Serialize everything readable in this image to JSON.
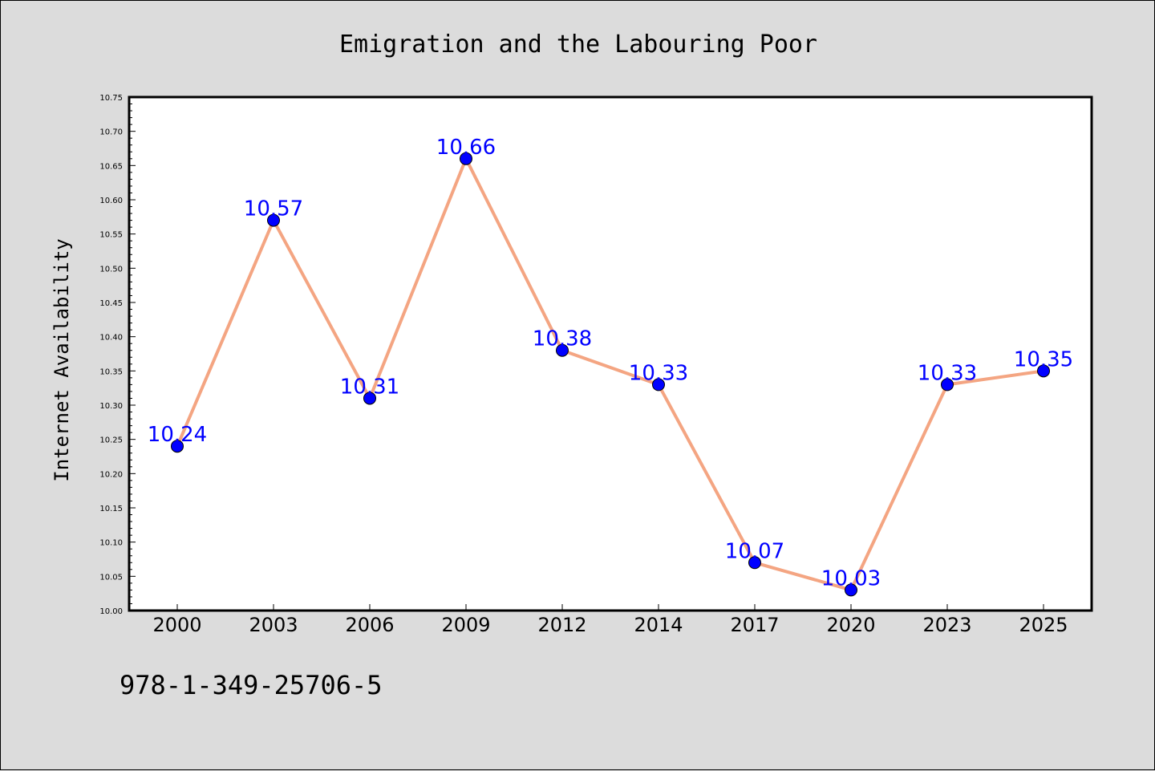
{
  "chart_data": {
    "type": "line",
    "title": "Emigration and the Labouring Poor",
    "xlabel": "",
    "ylabel": "Internet Availability",
    "categories": [
      "2000",
      "2003",
      "2006",
      "2009",
      "2012",
      "2014",
      "2017",
      "2020",
      "2023",
      "2025"
    ],
    "series": [
      {
        "values": [
          10.24,
          10.57,
          10.31,
          10.66,
          10.38,
          10.33,
          10.07,
          10.03,
          10.33,
          10.35
        ],
        "labels": [
          "10.24",
          "10.57",
          "10.31",
          "10.66",
          "10.38",
          "10.33",
          "10.07",
          "10.03",
          "10.33",
          "10.35"
        ],
        "line_color": "#f4a582",
        "marker_color": "#0000ff",
        "label_color": "#0000ff"
      }
    ],
    "ylim": [
      10.0,
      10.75
    ],
    "yticks": [
      "10.00",
      "10.05",
      "10.10",
      "10.15",
      "10.20",
      "10.25",
      "10.30",
      "10.35",
      "10.40",
      "10.45",
      "10.50",
      "10.55",
      "10.60",
      "10.65",
      "10.70",
      "10.75"
    ],
    "grid": false,
    "legend": "none",
    "background": "#dcdcdc",
    "plot_background": "#ffffff"
  },
  "footnote": "978-1-349-25706-5"
}
